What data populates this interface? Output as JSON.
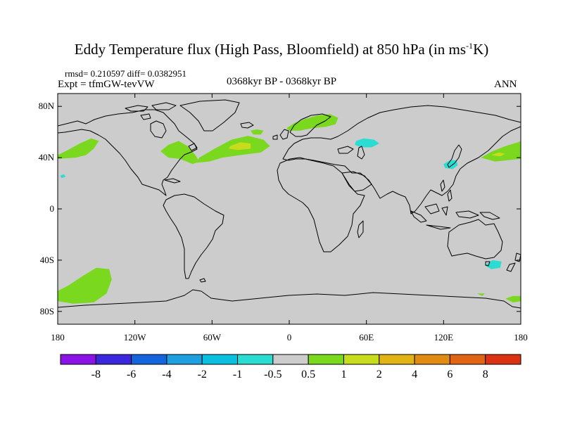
{
  "title": {
    "prefix": "Eddy Temperature flux (High Pass, Bloomfield) at 850 hPa (in ms",
    "exp": "-1",
    "suffix": "K)"
  },
  "stats": "rmsd= 0.210597 diff= 0.0382951",
  "expt": "Expt = tfmGW-tevVW",
  "period": "0368kyr BP - 0368kyr BP",
  "season": "ANN",
  "map": {
    "background": "#cccccc",
    "projection": "cylindrical equidistant",
    "lon_ticks": [
      "180",
      "120W",
      "60W",
      "0",
      "60E",
      "120E",
      "180"
    ],
    "lat_ticks": [
      "80N",
      "40N",
      "0",
      "40S",
      "80S"
    ],
    "lat_range": [
      -90,
      90
    ],
    "lon_range": [
      -180,
      180
    ],
    "coastline_color": "#000000"
  },
  "colorbar": {
    "colors": [
      "#8a14e6",
      "#3c28dc",
      "#1464dc",
      "#1e9fe0",
      "#0ac0e0",
      "#2adcd2",
      "#cccccc",
      "#7ad81e",
      "#c8dc1e",
      "#e0b414",
      "#e08c14",
      "#e06414",
      "#dc3214"
    ],
    "labels": [
      "-8",
      "-6",
      "-4",
      "-2",
      "-1",
      "-0.5",
      "0.5",
      "1",
      "2",
      "4",
      "6",
      "8"
    ]
  },
  "chart_data": {
    "type": "heatmap",
    "variable": "Eddy Temperature flux (High Pass, Bloomfield) at 850 hPa",
    "units": "ms-1K",
    "levels": [
      -8,
      -6,
      -4,
      -2,
      -1,
      -0.5,
      0.5,
      1,
      2,
      4,
      6,
      8
    ],
    "regions": [
      {
        "value_class": "1 to 2",
        "color": "#7ad81e",
        "outline_lonlat": [
          [
            -180,
            42
          ],
          [
            -172,
            46
          ],
          [
            -163,
            51
          ],
          [
            -154,
            55
          ],
          [
            -148,
            53
          ],
          [
            -152,
            47
          ],
          [
            -158,
            42
          ],
          [
            -166,
            40
          ],
          [
            -180,
            39
          ]
        ]
      },
      {
        "value_class": "1 to 2",
        "color": "#7ad81e",
        "outline_lonlat": [
          [
            -100,
            45
          ],
          [
            -94,
            50
          ],
          [
            -86,
            53
          ],
          [
            -79,
            49
          ],
          [
            -73,
            42
          ],
          [
            -70,
            37
          ],
          [
            -75,
            35
          ],
          [
            -85,
            39
          ],
          [
            -94,
            40
          ]
        ]
      },
      {
        "value_class": "1 to 2",
        "color": "#7ad81e",
        "outline_lonlat": [
          [
            -70,
            40
          ],
          [
            -58,
            47
          ],
          [
            -45,
            54
          ],
          [
            -32,
            57
          ],
          [
            -20,
            54
          ],
          [
            -15,
            49
          ],
          [
            -22,
            44
          ],
          [
            -38,
            42
          ],
          [
            -52,
            40
          ],
          [
            -62,
            37
          ],
          [
            -72,
            36
          ]
        ]
      },
      {
        "value_class": "2 to 4",
        "color": "#c8dc1e",
        "outline_lonlat": [
          [
            -46,
            49
          ],
          [
            -38,
            52
          ],
          [
            -30,
            51
          ],
          [
            -30,
            47
          ],
          [
            -40,
            46
          ],
          [
            -47,
            47
          ]
        ]
      },
      {
        "value_class": "1 to 2",
        "color": "#7ad81e",
        "outline_lonlat": [
          [
            -2,
            63
          ],
          [
            4,
            67
          ],
          [
            12,
            70
          ],
          [
            22,
            73
          ],
          [
            32,
            74
          ],
          [
            38,
            71
          ],
          [
            36,
            66
          ],
          [
            28,
            64
          ],
          [
            18,
            63
          ],
          [
            8,
            61
          ],
          [
            0,
            61
          ]
        ]
      },
      {
        "value_class": "1 to 2",
        "color": "#7ad81e",
        "outline_lonlat": [
          [
            -30,
            61
          ],
          [
            -25,
            62
          ],
          [
            -20,
            61
          ],
          [
            -22,
            58
          ],
          [
            -28,
            58
          ]
        ]
      },
      {
        "value_class": "1 to 2",
        "color": "#7ad81e",
        "outline_lonlat": [
          [
            149,
            40
          ],
          [
            158,
            45
          ],
          [
            168,
            49
          ],
          [
            178,
            52
          ],
          [
            180,
            53
          ],
          [
            180,
            39
          ],
          [
            170,
            38
          ],
          [
            160,
            37
          ]
        ]
      },
      {
        "value_class": "2 to 4",
        "color": "#c8dc1e",
        "outline_lonlat": [
          [
            157,
            42
          ],
          [
            163,
            44
          ],
          [
            168,
            43
          ],
          [
            164,
            41
          ]
        ]
      },
      {
        "value_class": "1 to 2",
        "color": "#7ad81e",
        "outline_lonlat": [
          [
            -180,
            -64
          ],
          [
            -172,
            -60
          ],
          [
            -160,
            -52
          ],
          [
            -150,
            -46
          ],
          [
            -140,
            -47
          ],
          [
            -138,
            -55
          ],
          [
            -142,
            -66
          ],
          [
            -152,
            -73
          ],
          [
            -168,
            -74
          ],
          [
            -180,
            -72
          ]
        ]
      },
      {
        "value_class": "1 to 2",
        "color": "#7ad81e",
        "outline_lonlat": [
          [
            168,
            -70
          ],
          [
            174,
            -68
          ],
          [
            180,
            -68
          ],
          [
            180,
            -72
          ],
          [
            174,
            -73
          ]
        ]
      },
      {
        "value_class": "1 to 2",
        "color": "#7ad81e",
        "outline_lonlat": [
          [
            146,
            -66
          ],
          [
            152,
            -66
          ],
          [
            150,
            -68
          ]
        ]
      },
      {
        "value_class": "-1 to -0.5",
        "color": "#2adcd2",
        "outline_lonlat": [
          [
            52,
            53
          ],
          [
            58,
            55
          ],
          [
            66,
            54
          ],
          [
            70,
            51
          ],
          [
            64,
            48
          ],
          [
            56,
            48
          ],
          [
            51,
            50
          ]
        ]
      },
      {
        "value_class": "-1 to -0.5",
        "color": "#2adcd2",
        "outline_lonlat": [
          [
            120,
            35
          ],
          [
            125,
            38
          ],
          [
            130,
            38
          ],
          [
            131,
            34
          ],
          [
            127,
            31
          ],
          [
            121,
            32
          ]
        ]
      },
      {
        "value_class": "-1 to -0.5",
        "color": "#2adcd2",
        "outline_lonlat": [
          [
            152,
            -44
          ],
          [
            158,
            -40
          ],
          [
            165,
            -41
          ],
          [
            164,
            -46
          ],
          [
            157,
            -47
          ]
        ]
      },
      {
        "value_class": "-1 to -0.5",
        "color": "#2adcd2",
        "outline_lonlat": [
          [
            -178,
            26
          ],
          [
            -175,
            27
          ],
          [
            -174,
            25
          ],
          [
            -177,
            24
          ]
        ]
      }
    ]
  }
}
